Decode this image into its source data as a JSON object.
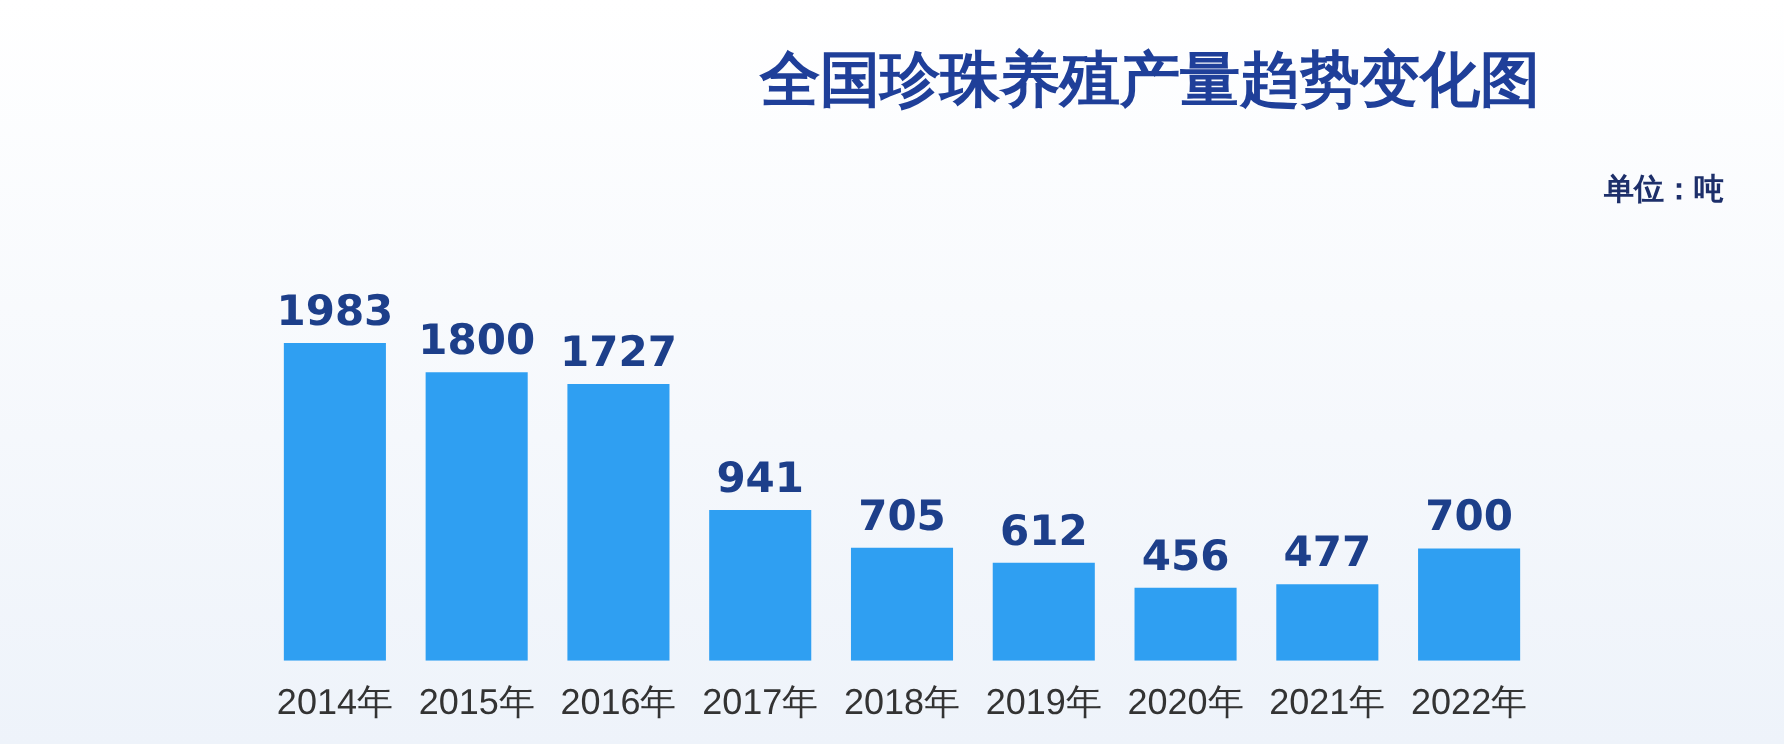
{
  "chart_data": {
    "type": "bar",
    "title": "全国珍珠养殖产量趋势变化图",
    "annotations": [
      "单位：吨"
    ],
    "categories": [
      "2014年",
      "2015年",
      "2016年",
      "2017年",
      "2018年",
      "2019年",
      "2020年",
      "2021年",
      "2022年"
    ],
    "values": [
      1983,
      1800,
      1727,
      941,
      705,
      612,
      456,
      477,
      700
    ],
    "color": "#2f9ff2",
    "data_labels": true,
    "grid": false,
    "legend": false
  }
}
